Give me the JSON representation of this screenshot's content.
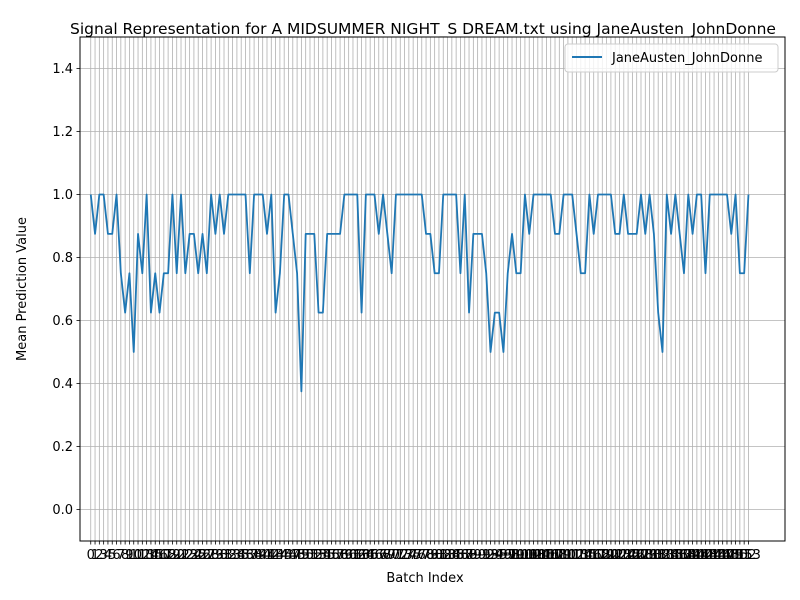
{
  "chart_data": {
    "type": "line",
    "title": "Signal Representation for A MIDSUMMER NIGHT_S DREAM.txt using JaneAusten_JohnDonne",
    "xlabel": "Batch Index",
    "ylabel": "Mean Prediction Value",
    "xlim": [
      -2.5,
      161.5
    ],
    "ylim": [
      -0.1,
      1.5
    ],
    "yticks": [
      0.0,
      0.2,
      0.4,
      0.6,
      0.8,
      1.0,
      1.2,
      1.4
    ],
    "ytick_labels": [
      "0.0",
      "0.2",
      "0.4",
      "0.6",
      "0.8",
      "1.0",
      "1.2",
      "1.4"
    ],
    "grid": true,
    "legend_position": "top-right",
    "color": "#1f77b4",
    "x_ticks_every_integer": true,
    "series": [
      {
        "name": "JaneAusten_JohnDonne",
        "values": [
          1.0,
          0.875,
          1.0,
          1.0,
          0.875,
          0.875,
          1.0,
          0.75,
          0.625,
          0.75,
          0.5,
          0.875,
          0.75,
          1.0,
          0.625,
          0.75,
          0.625,
          0.75,
          0.75,
          1.0,
          0.75,
          1.0,
          0.75,
          0.875,
          0.875,
          0.75,
          0.875,
          0.75,
          1.0,
          0.875,
          1.0,
          0.875,
          1.0,
          1.0,
          1.0,
          1.0,
          1.0,
          0.75,
          1.0,
          1.0,
          1.0,
          0.875,
          1.0,
          0.625,
          0.75,
          1.0,
          1.0,
          0.875,
          0.75,
          0.375,
          0.875,
          0.875,
          0.875,
          0.625,
          0.625,
          0.875,
          0.875,
          0.875,
          0.875,
          1.0,
          1.0,
          1.0,
          1.0,
          0.625,
          1.0,
          1.0,
          1.0,
          0.875,
          1.0,
          0.875,
          0.75,
          1.0,
          1.0,
          1.0,
          1.0,
          1.0,
          1.0,
          1.0,
          0.875,
          0.875,
          0.75,
          0.75,
          1.0,
          1.0,
          1.0,
          1.0,
          0.75,
          1.0,
          0.625,
          0.875,
          0.875,
          0.875,
          0.75,
          0.5,
          0.625,
          0.625,
          0.5,
          0.75,
          0.875,
          0.75,
          0.75,
          1.0,
          0.875,
          1.0,
          1.0,
          1.0,
          1.0,
          1.0,
          0.875,
          0.875,
          1.0,
          1.0,
          1.0,
          0.875,
          0.75,
          0.75,
          1.0,
          0.875,
          1.0,
          1.0,
          1.0,
          1.0,
          0.875,
          0.875,
          1.0,
          0.875,
          0.875,
          0.875,
          1.0,
          0.875,
          1.0,
          0.875,
          0.625,
          0.5,
          1.0,
          0.875,
          1.0,
          0.875,
          0.75,
          1.0,
          0.875,
          1.0,
          1.0,
          0.75,
          1.0,
          1.0,
          1.0,
          1.0,
          1.0,
          0.875,
          1.0,
          0.75,
          0.75,
          1.0
        ]
      }
    ]
  }
}
